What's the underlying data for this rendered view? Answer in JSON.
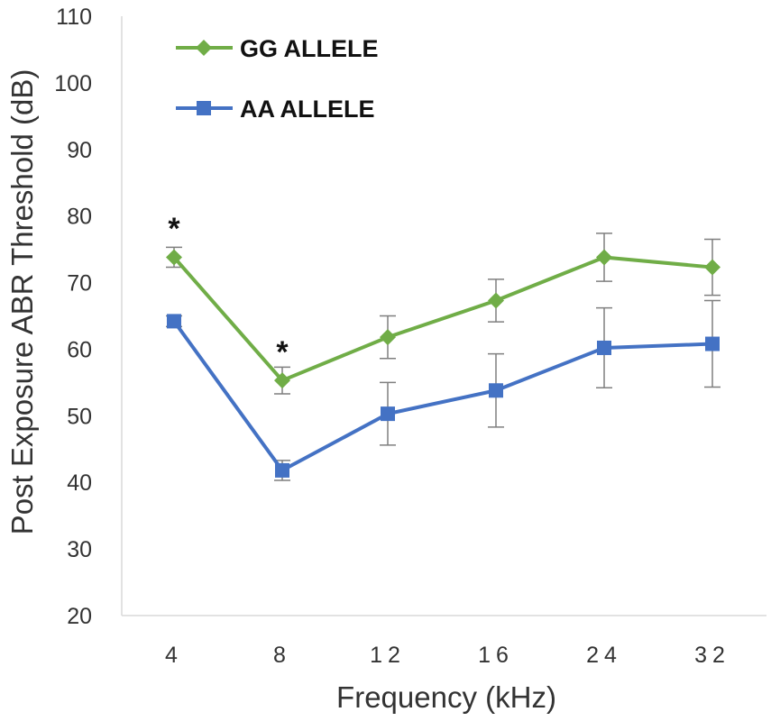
{
  "chart_data": {
    "type": "line",
    "title": "",
    "xlabel": "Frequency (kHz)",
    "ylabel": "Post Exposure ABR Threshold (dB)",
    "categories": [
      "4",
      "8",
      "12",
      "16",
      "24",
      "32"
    ],
    "ylim": [
      20,
      110
    ],
    "yticks": [
      20,
      30,
      40,
      50,
      60,
      70,
      80,
      90,
      100,
      110
    ],
    "grid": false,
    "legend_position": "top-left",
    "series": [
      {
        "name": "GG ALLELE",
        "color": "#70ad47",
        "marker": "diamond",
        "values": [
          73.8,
          55.3,
          61.8,
          67.3,
          73.8,
          72.3
        ],
        "errors": [
          1.5,
          2.0,
          3.2,
          3.2,
          3.6,
          4.2
        ]
      },
      {
        "name": "AA ALLELE",
        "color": "#4472c4",
        "marker": "square",
        "values": [
          64.2,
          41.8,
          50.3,
          53.8,
          60.2,
          60.8
        ],
        "errors": [
          0.8,
          1.5,
          4.7,
          5.5,
          6.0,
          6.5
        ]
      }
    ],
    "annotations": [
      {
        "text": "*",
        "category": "4",
        "y": 79
      },
      {
        "text": "*",
        "category": "8",
        "y": 60.5
      }
    ]
  }
}
